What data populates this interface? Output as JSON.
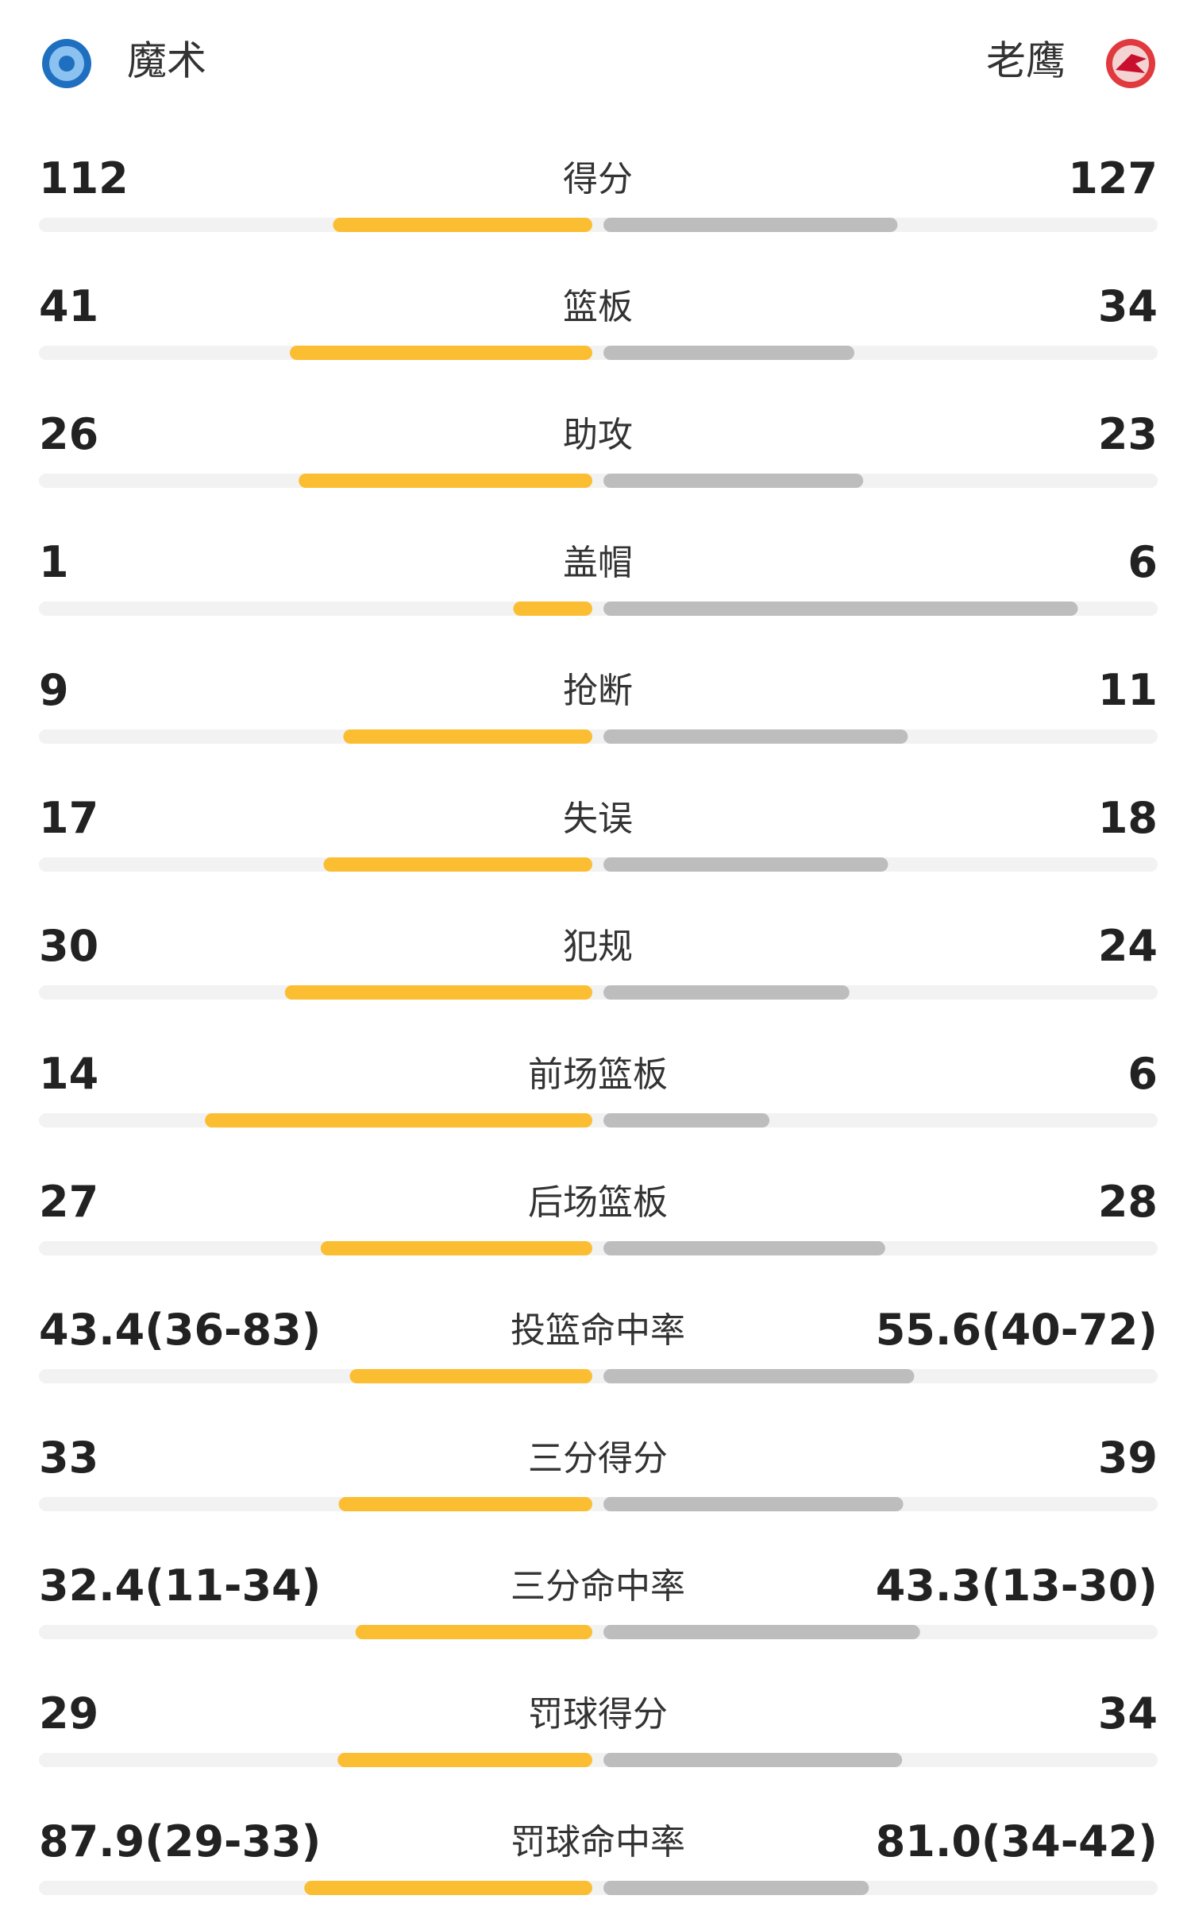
{
  "header": {
    "home": "魔术",
    "away": "老鹰"
  },
  "rows": [
    {
      "label": "得分",
      "left": 112,
      "right": 127
    },
    {
      "label": "篮板",
      "left": 41,
      "right": 34
    },
    {
      "label": "助攻",
      "left": 26,
      "right": 23
    },
    {
      "label": "盖帽",
      "left": 1,
      "right": 6
    },
    {
      "label": "抢断",
      "left": 9,
      "right": 11
    },
    {
      "label": "失误",
      "left": 17,
      "right": 18
    },
    {
      "label": "犯规",
      "left": 30,
      "right": 24
    },
    {
      "label": "前场篮板",
      "left": 14,
      "right": 6
    },
    {
      "label": "后场篮板",
      "left": 27,
      "right": 28
    },
    {
      "label": "投篮命中率",
      "left": 43.4,
      "left_detail": "(36-83)",
      "right": 55.6,
      "right_detail": "(40-72)"
    },
    {
      "label": "三分得分",
      "left": 33,
      "right": 39
    },
    {
      "label": "三分命中率",
      "left": 32.4,
      "left_detail": "(11-34)",
      "right": 43.3,
      "right_detail": "(13-30)"
    },
    {
      "label": "罚球得分",
      "left": 29,
      "right": 34
    },
    {
      "label": "罚球命中率",
      "left": 87.9,
      "left_detail": "(29-33)",
      "right": {
        "value": 81,
        "label": "81.0"
      },
      "right_detail": "(34-42)"
    }
  ]
}
